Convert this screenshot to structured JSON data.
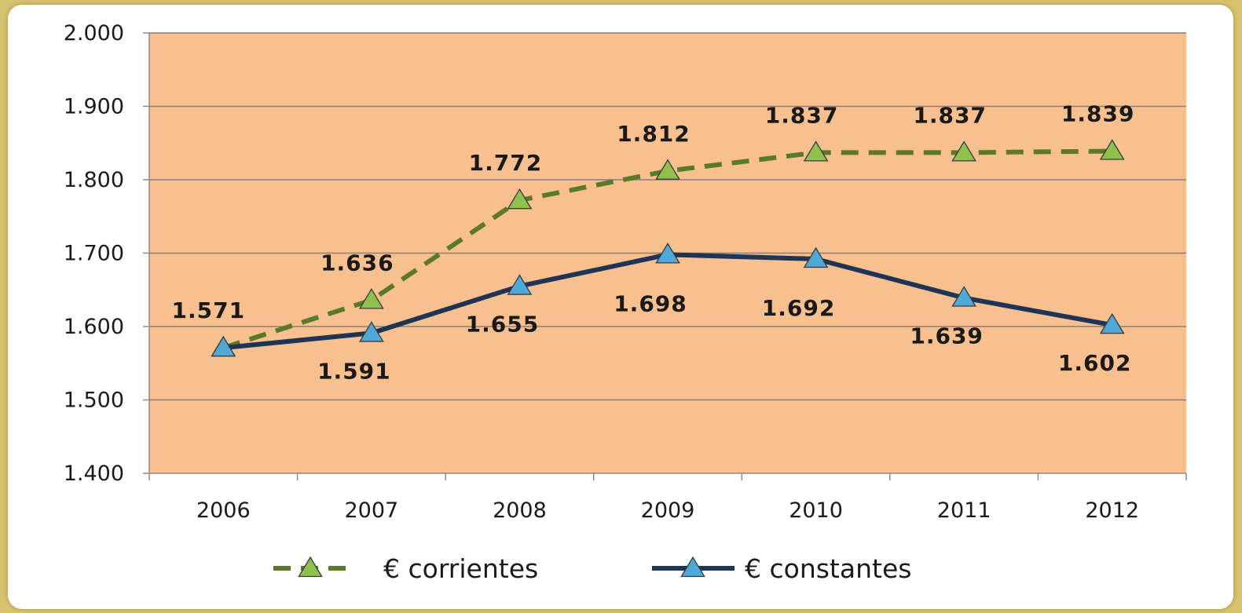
{
  "chart_data": {
    "type": "line",
    "categories": [
      "2006",
      "2007",
      "2008",
      "2009",
      "2010",
      "2011",
      "2012"
    ],
    "ylim": [
      1400,
      2000
    ],
    "yticks": [
      1400,
      1500,
      1600,
      1700,
      1800,
      1900,
      2000
    ],
    "ytick_labels": [
      "1.400",
      "1.500",
      "1.600",
      "1.700",
      "1.800",
      "1.900",
      "2.000"
    ],
    "grid": true,
    "legend_position": "bottom",
    "plot_background": "#f8bf8f",
    "series": [
      {
        "name": "€ corrientes",
        "values": [
          1571,
          1636,
          1772,
          1812,
          1837,
          1837,
          1839
        ],
        "labels": [
          "1.571",
          "1.636",
          "1.772",
          "1.812",
          "1.837",
          "1.837",
          "1.839"
        ],
        "line_color": "#5a7a2a",
        "marker_color": "#8fbf4f",
        "line_style": "dashed",
        "marker": "triangle"
      },
      {
        "name": "€ constantes",
        "values": [
          1571,
          1591,
          1655,
          1698,
          1692,
          1639,
          1602
        ],
        "labels": [
          "",
          "1.591",
          "1.655",
          "1.698",
          "1.692",
          "1.639",
          "1.602"
        ],
        "line_color": "#1f3556",
        "marker_color": "#4fa8d8",
        "line_style": "solid",
        "marker": "triangle"
      }
    ]
  }
}
